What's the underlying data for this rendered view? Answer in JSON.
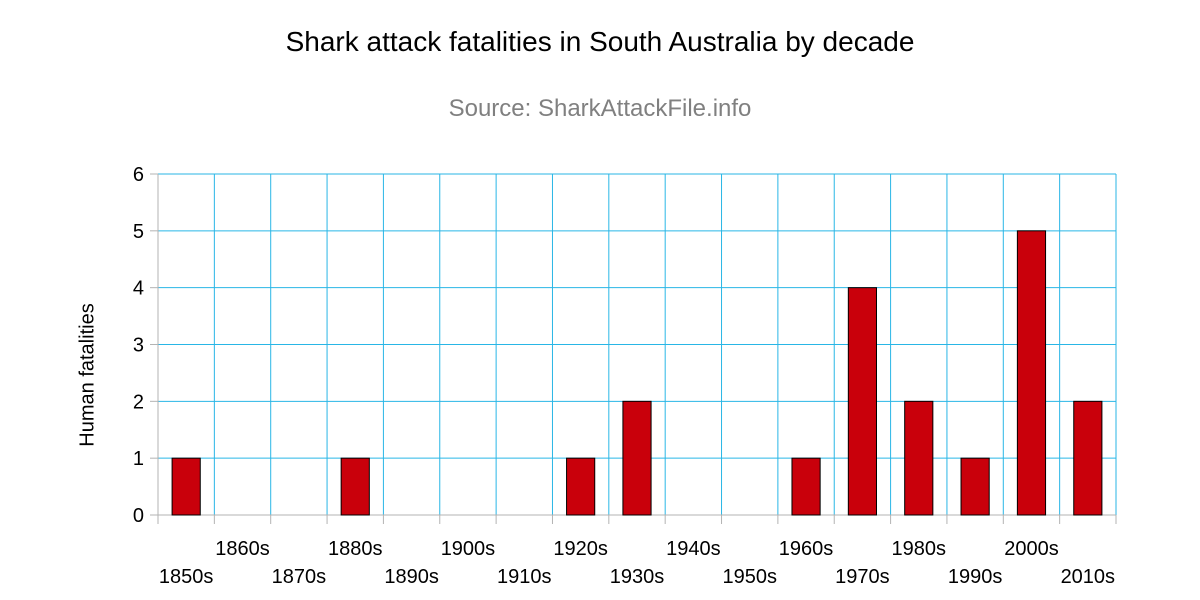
{
  "chart_data": {
    "type": "bar",
    "title": "Shark attack fatalities in South Australia by decade",
    "subtitle": "Source: SharkAttackFile.info",
    "xlabel": "",
    "ylabel": "Human fatalities",
    "categories": [
      "1850s",
      "1860s",
      "1870s",
      "1880s",
      "1890s",
      "1900s",
      "1910s",
      "1920s",
      "1930s",
      "1940s",
      "1950s",
      "1960s",
      "1970s",
      "1980s",
      "1990s",
      "2000s",
      "2010s"
    ],
    "values": [
      1,
      0,
      0,
      1,
      0,
      0,
      0,
      1,
      2,
      0,
      0,
      1,
      4,
      2,
      1,
      5,
      2
    ],
    "ylim": [
      0,
      6
    ],
    "yticks": [
      0,
      1,
      2,
      3,
      4,
      5,
      6
    ],
    "grid": true,
    "legend": "none",
    "colors": {
      "bar": "#c9000b",
      "bar_outline": "#000000",
      "grid": "#29b6e6",
      "axis": "#b3b3b3"
    }
  }
}
